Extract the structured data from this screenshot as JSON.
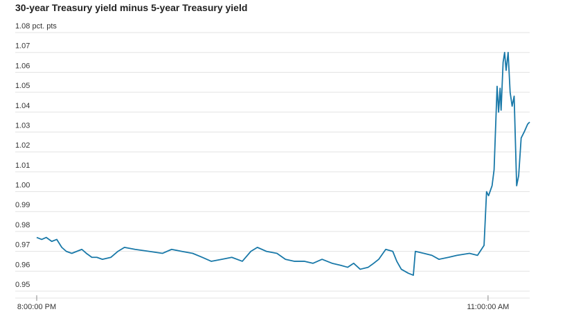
{
  "chart_data": {
    "type": "line",
    "title": "30-year Treasury yield minus 5-year Treasury yield",
    "x": [
      "20:00",
      "20:10",
      "20:19",
      "20:30",
      "20:40",
      "20:50",
      "20:59",
      "21:10",
      "21:20",
      "21:30",
      "21:39",
      "21:50",
      "22:00",
      "22:11",
      "22:28",
      "22:42",
      "22:55",
      "23:16",
      "23:44",
      "0:11",
      "0:29",
      "0:49",
      "1:11",
      "1:30",
      "1:48",
      "2:09",
      "2:29",
      "2:50",
      "3:07",
      "3:20",
      "3:38",
      "3:59",
      "4:16",
      "4:34",
      "4:54",
      "5:11",
      "5:29",
      "5:49",
      "6:06",
      "6:20",
      "6:32",
      "6:45",
      "7:01",
      "7:12",
      "7:22",
      "7:36",
      "7:50",
      "7:58",
      "8:07",
      "8:21",
      "8:31",
      "8:35",
      "8:52",
      "9:08",
      "9:22",
      "9:41",
      "9:58",
      "10:23",
      "10:39",
      "10:52",
      "10:57",
      "11:01",
      "11:08",
      "11:12",
      "11:18",
      "11:21",
      "11:24",
      "11:26",
      "11:30",
      "11:33",
      "11:36",
      "11:40",
      "11:44",
      "11:48",
      "11:52",
      "11:57",
      "12:01",
      "12:06",
      "12:12",
      "12:19",
      "12:23"
    ],
    "series": [
      {
        "color": "#1878a8",
        "values": [
          0.977,
          0.976,
          0.977,
          0.975,
          0.976,
          0.972,
          0.97,
          0.969,
          0.97,
          0.971,
          0.969,
          0.967,
          0.967,
          0.966,
          0.967,
          0.97,
          0.972,
          0.971,
          0.97,
          0.969,
          0.971,
          0.97,
          0.969,
          0.967,
          0.965,
          0.966,
          0.967,
          0.965,
          0.97,
          0.972,
          0.97,
          0.969,
          0.966,
          0.965,
          0.965,
          0.964,
          0.966,
          0.964,
          0.963,
          0.962,
          0.964,
          0.961,
          0.962,
          0.964,
          0.966,
          0.971,
          0.97,
          0.965,
          0.961,
          0.959,
          0.958,
          0.97,
          0.969,
          0.968,
          0.966,
          0.967,
          0.968,
          0.969,
          0.968,
          0.973,
          1.0,
          0.998,
          1.003,
          1.011,
          1.053,
          1.04,
          1.052,
          1.041,
          1.065,
          1.07,
          1.061,
          1.07,
          1.05,
          1.043,
          1.048,
          1.003,
          1.008,
          1.027,
          1.03,
          1.034,
          1.035
        ]
      }
    ],
    "xlim": [
      "20:00",
      "12:23"
    ],
    "xticks": [
      {
        "value": "20:00",
        "label": "8:00:00 PM"
      },
      {
        "value": "11:00",
        "label": "11:00:00 AM"
      }
    ],
    "ylim": [
      0.95,
      1.08
    ],
    "yticks": [
      0.95,
      0.96,
      0.97,
      0.98,
      0.99,
      {
        "value": 1.0,
        "label": "1.00"
      },
      1.01,
      1.02,
      1.03,
      1.04,
      1.05,
      1.06,
      1.07,
      {
        "value": 1.08,
        "label": "1.08 pct. pts"
      }
    ],
    "grid": true
  }
}
